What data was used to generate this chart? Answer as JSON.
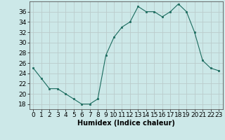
{
  "x": [
    0,
    1,
    2,
    3,
    4,
    5,
    6,
    7,
    8,
    9,
    10,
    11,
    12,
    13,
    14,
    15,
    16,
    17,
    18,
    19,
    20,
    21,
    22,
    23
  ],
  "y": [
    25,
    23,
    21,
    21,
    20,
    19,
    18,
    18,
    19,
    27.5,
    31,
    33,
    34,
    37,
    36,
    36,
    35,
    36,
    37.5,
    36,
    32,
    26.5,
    25,
    24.5
  ],
  "line_color": "#1a6b5e",
  "marker_color": "#1a6b5e",
  "bg_color": "#cce8e8",
  "grid_color": "#bbcccc",
  "xlabel": "Humidex (Indice chaleur)",
  "ylim": [
    17,
    38
  ],
  "yticks": [
    18,
    20,
    22,
    24,
    26,
    28,
    30,
    32,
    34,
    36
  ],
  "xticks": [
    0,
    1,
    2,
    3,
    4,
    5,
    6,
    7,
    8,
    9,
    10,
    11,
    12,
    13,
    14,
    15,
    16,
    17,
    18,
    19,
    20,
    21,
    22,
    23
  ],
  "xlabel_fontsize": 7,
  "tick_fontsize": 6.5
}
